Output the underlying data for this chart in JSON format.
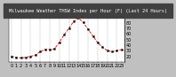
{
  "title": "Milwaukee Weather THSW Index per Hour (F) (Last 24 Hours)",
  "hours": [
    0,
    1,
    2,
    3,
    4,
    5,
    6,
    7,
    8,
    9,
    10,
    11,
    12,
    13,
    14,
    15,
    16,
    17,
    18,
    19,
    20,
    21,
    22,
    23
  ],
  "values": [
    20,
    18,
    17,
    18,
    20,
    22,
    28,
    32,
    32,
    33,
    45,
    58,
    70,
    82,
    88,
    80,
    68,
    56,
    44,
    36,
    30,
    28,
    30,
    32
  ],
  "line_color": "#dd0000",
  "marker_color": "#000000",
  "grid_color": "#888888",
  "plot_bg": "#ffffff",
  "fig_bg": "#c0c0c0",
  "title_bg": "#404040",
  "title_fg": "#ffffff",
  "ylim": [
    10,
    95
  ],
  "ytick_values": [
    20,
    30,
    40,
    50,
    60,
    70,
    80,
    90
  ],
  "xtick_values": [
    0,
    1,
    2,
    3,
    4,
    5,
    6,
    7,
    8,
    9,
    10,
    11,
    12,
    13,
    14,
    15,
    16,
    17,
    18,
    19,
    20,
    21,
    22,
    23
  ],
  "tick_fontsize": 3.5,
  "title_fontsize": 3.8,
  "linewidth": 0.6,
  "markersize": 1.4
}
